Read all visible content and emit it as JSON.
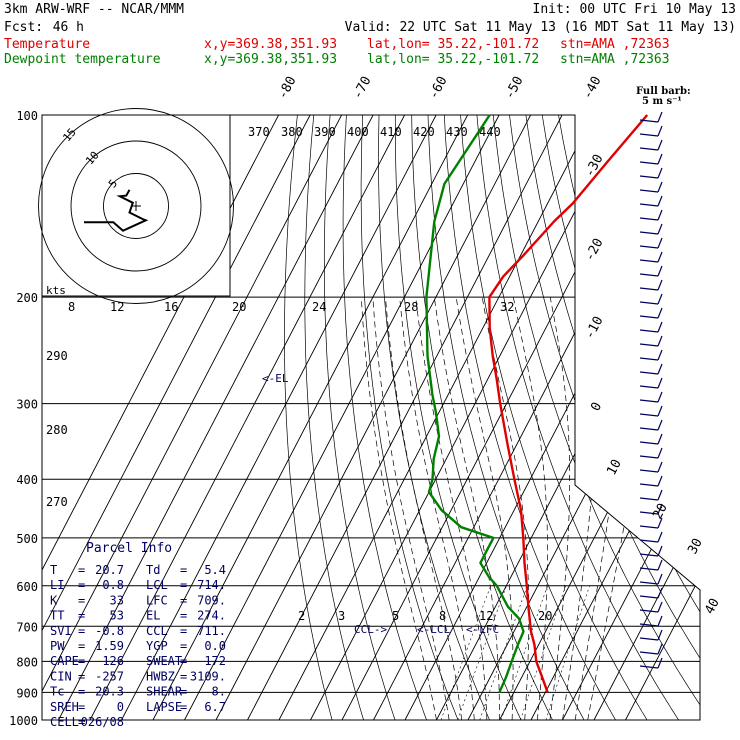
{
  "header": {
    "model": "3km ARW-WRF -- NCAR/MMM",
    "init": "Init: 00 UTC Fri 10 May 13",
    "fcst_label": "Fcst:",
    "fcst_value": "46 h",
    "valid": "Valid: 22 UTC Sat 11 May 13 (16 MDT Sat 11 May 13)",
    "temp_name": "Temperature",
    "dew_name": "Dewpoint temperature",
    "xy": "x,y=369.38,351.93",
    "latlon": "lat,lon= 35.22,-101.72",
    "stn": "stn=AMA ,72363"
  },
  "barb_legend": {
    "line1": "Full barb:",
    "line2": "5 m s⁻¹"
  },
  "hodograph": {
    "units": "kts",
    "ring_labels": [
      "5",
      "10",
      "15"
    ]
  },
  "parcel": {
    "title": "Parcel Info",
    "rows": [
      [
        "T",
        "=",
        "20.7",
        "Td",
        "=",
        "5.4"
      ],
      [
        "LI",
        "=",
        "-0.8",
        "LCL",
        "=",
        "714."
      ],
      [
        "K",
        "=",
        "33",
        "LFC",
        "=",
        "709."
      ],
      [
        "TT",
        "=",
        "53",
        "EL",
        "=",
        "274."
      ],
      [
        "SVI",
        "=",
        "-0.8",
        "CCL",
        "=",
        "711."
      ],
      [
        "PW",
        "=",
        "1.59",
        "YGP",
        "=",
        "0.0"
      ],
      [
        "CAPE",
        "=",
        "126",
        "SWEAT",
        "=",
        "172"
      ],
      [
        "CIN",
        "=",
        "-257",
        "HWBZ",
        "=",
        "3109."
      ],
      [
        "Tc",
        "=",
        "20.3",
        "SHEAR",
        "=",
        "8."
      ],
      [
        "SREH",
        "=",
        "0",
        "LAPSE",
        "=",
        "6.7"
      ],
      [
        "CELL",
        "=",
        "026/08",
        "",
        "",
        ""
      ]
    ]
  },
  "level_markers": {
    "el": "<-EL",
    "ccl": "CCL->",
    "lcl": "<-LCL",
    "lfc": "<-LFC"
  },
  "colors": {
    "temperature": "#e00000",
    "dewpoint": "#008000",
    "grid": "#000000",
    "markers": "#000060"
  },
  "chart_data": {
    "type": "line",
    "title": "",
    "y_axis": {
      "label": "",
      "scale": "log",
      "ylim": [
        1000,
        100
      ],
      "ticks": [
        100,
        200,
        300,
        400,
        500,
        600,
        700,
        800,
        900,
        1000
      ]
    },
    "isotherm_labels": [
      -80,
      -70,
      -60,
      -50,
      -40,
      -30,
      -20,
      -10,
      0,
      10,
      20,
      30,
      40
    ],
    "theta_labels_top": [
      370,
      380,
      390,
      400,
      410,
      420,
      430,
      440
    ],
    "theta_labels_left": [
      290,
      280,
      270
    ],
    "mixing_ratio_labels_top": [
      8,
      12,
      16,
      20,
      24,
      28,
      32
    ],
    "mixing_ratio_labels_low": [
      2,
      3,
      5,
      8,
      12,
      20
    ],
    "series": [
      {
        "name": "Temperature",
        "p": [
          900,
          850,
          800,
          750,
          714,
          650,
          600,
          550,
          500,
          450,
          400,
          350,
          300,
          274,
          250,
          225,
          200,
          185,
          170,
          150,
          140,
          120,
          100
        ],
        "t": [
          20.7,
          16.5,
          12.0,
          8.6,
          5.4,
          0.5,
          -3.5,
          -8.0,
          -12.5,
          -17.8,
          -25.0,
          -33.0,
          -42.0,
          -47.0,
          -52.3,
          -57.8,
          -63.0,
          -62.0,
          -59.0,
          -55.0,
          -52.0,
          -48.0,
          -43.0
        ]
      },
      {
        "name": "Dewpoint temperature",
        "p": [
          900,
          850,
          800,
          750,
          714,
          680,
          650,
          600,
          580,
          550,
          530,
          500,
          480,
          450,
          420,
          400,
          370,
          340,
          310,
          290,
          250,
          200,
          150,
          130,
          100
        ],
        "t": [
          5.4,
          5.0,
          4.2,
          3.4,
          3.0,
          -0.5,
          -6.0,
          -13.0,
          -17.0,
          -22.0,
          -22.0,
          -22.0,
          -34.0,
          -43.0,
          -50.0,
          -51.0,
          -54.0,
          -56.0,
          -61.0,
          -65.0,
          -73.0,
          -83.0,
          -93.0,
          -96.0,
          -93.0
        ]
      }
    ],
    "hodograph_u": [
      -8.0,
      -3.5,
      -2.0,
      1.5,
      1.0,
      -1.0,
      -0.5,
      -2.5,
      -1.5,
      -1.0
    ],
    "hodograph_v": [
      -2.5,
      -2.5,
      -3.8,
      -2.2,
      -2.0,
      -1.0,
      0.5,
      1.5,
      1.6,
      2.5
    ]
  }
}
